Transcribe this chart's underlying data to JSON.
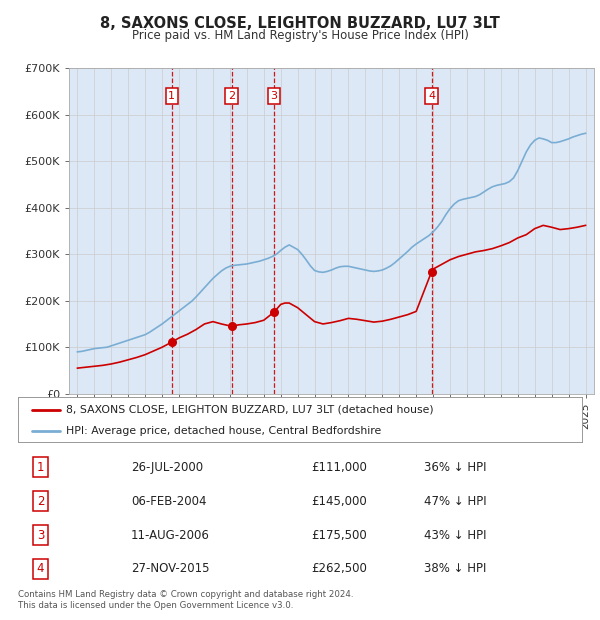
{
  "title": "8, SAXONS CLOSE, LEIGHTON BUZZARD, LU7 3LT",
  "subtitle": "Price paid vs. HM Land Registry's House Price Index (HPI)",
  "legend_property": "8, SAXONS CLOSE, LEIGHTON BUZZARD, LU7 3LT (detached house)",
  "legend_hpi": "HPI: Average price, detached house, Central Bedfordshire",
  "copyright": "Contains HM Land Registry data © Crown copyright and database right 2024.\nThis data is licensed under the Open Government Licence v3.0.",
  "transactions": [
    {
      "num": 1,
      "date": "26-JUL-2000",
      "date_x": 2000.57,
      "price": 111000,
      "label": "£111,000",
      "pct": "36% ↓ HPI"
    },
    {
      "num": 2,
      "date": "06-FEB-2004",
      "date_x": 2004.1,
      "price": 145000,
      "label": "£145,000",
      "pct": "47% ↓ HPI"
    },
    {
      "num": 3,
      "date": "11-AUG-2006",
      "date_x": 2006.61,
      "price": 175500,
      "label": "£175,500",
      "pct": "43% ↓ HPI"
    },
    {
      "num": 4,
      "date": "27-NOV-2015",
      "date_x": 2015.91,
      "price": 262500,
      "label": "£262,500",
      "pct": "38% ↓ HPI"
    }
  ],
  "hpi_color": "#7aadd4",
  "price_color": "#cc0000",
  "vline_color": "#cc0000",
  "background_color": "#dce8f5",
  "plot_background": "#ffffff",
  "ylim": [
    0,
    700000
  ],
  "xlim": [
    1994.5,
    2025.5
  ],
  "figsize": [
    6.0,
    6.2
  ],
  "dpi": 100,
  "years_hpi": [
    1995,
    1995.25,
    1995.5,
    1995.75,
    1996,
    1996.25,
    1996.5,
    1996.75,
    1997,
    1997.25,
    1997.5,
    1997.75,
    1998,
    1998.25,
    1998.5,
    1998.75,
    1999,
    1999.25,
    1999.5,
    1999.75,
    2000,
    2000.25,
    2000.5,
    2000.75,
    2001,
    2001.25,
    2001.5,
    2001.75,
    2002,
    2002.25,
    2002.5,
    2002.75,
    2003,
    2003.25,
    2003.5,
    2003.75,
    2004,
    2004.25,
    2004.5,
    2004.75,
    2005,
    2005.25,
    2005.5,
    2005.75,
    2006,
    2006.25,
    2006.5,
    2006.75,
    2007,
    2007.25,
    2007.5,
    2007.75,
    2008,
    2008.25,
    2008.5,
    2008.75,
    2009,
    2009.25,
    2009.5,
    2009.75,
    2010,
    2010.25,
    2010.5,
    2010.75,
    2011,
    2011.25,
    2011.5,
    2011.75,
    2012,
    2012.25,
    2012.5,
    2012.75,
    2013,
    2013.25,
    2013.5,
    2013.75,
    2014,
    2014.25,
    2014.5,
    2014.75,
    2015,
    2015.25,
    2015.5,
    2015.75,
    2016,
    2016.25,
    2016.5,
    2016.75,
    2017,
    2017.25,
    2017.5,
    2017.75,
    2018,
    2018.25,
    2018.5,
    2018.75,
    2019,
    2019.25,
    2019.5,
    2019.75,
    2020,
    2020.25,
    2020.5,
    2020.75,
    2021,
    2021.25,
    2021.5,
    2021.75,
    2022,
    2022.25,
    2022.5,
    2022.75,
    2023,
    2023.25,
    2023.5,
    2023.75,
    2024,
    2024.25,
    2024.5,
    2024.75,
    2025
  ],
  "hpi_values": [
    90000,
    91000,
    93000,
    95000,
    97000,
    98000,
    99000,
    100000,
    103000,
    106000,
    109000,
    112000,
    115000,
    118000,
    121000,
    124000,
    127000,
    132000,
    138000,
    144000,
    150000,
    157000,
    164000,
    171000,
    178000,
    185000,
    192000,
    199000,
    208000,
    218000,
    228000,
    238000,
    248000,
    256000,
    264000,
    270000,
    274000,
    276000,
    277000,
    278000,
    279000,
    281000,
    283000,
    285000,
    288000,
    291000,
    295000,
    300000,
    308000,
    315000,
    320000,
    315000,
    310000,
    300000,
    288000,
    275000,
    265000,
    262000,
    261000,
    263000,
    266000,
    270000,
    273000,
    274000,
    274000,
    272000,
    270000,
    268000,
    266000,
    264000,
    263000,
    264000,
    266000,
    270000,
    275000,
    282000,
    290000,
    298000,
    306000,
    315000,
    322000,
    328000,
    334000,
    340000,
    348000,
    358000,
    370000,
    385000,
    398000,
    408000,
    415000,
    418000,
    420000,
    422000,
    424000,
    428000,
    434000,
    440000,
    445000,
    448000,
    450000,
    452000,
    456000,
    464000,
    480000,
    500000,
    520000,
    535000,
    545000,
    550000,
    548000,
    545000,
    540000,
    540000,
    542000,
    545000,
    548000,
    552000,
    555000,
    558000,
    560000
  ],
  "years_price": [
    1995,
    1995.5,
    1996,
    1996.5,
    1997,
    1997.5,
    1998,
    1998.5,
    1999,
    1999.5,
    2000,
    2000.57,
    2001,
    2001.5,
    2002,
    2002.5,
    2003,
    2003.5,
    2004.1,
    2004.5,
    2005,
    2005.5,
    2006,
    2006.61,
    2007,
    2007.25,
    2007.5,
    2007.75,
    2008,
    2008.5,
    2009,
    2009.5,
    2010,
    2010.5,
    2011,
    2011.5,
    2012,
    2012.5,
    2013,
    2013.5,
    2014,
    2014.5,
    2015,
    2015.91,
    2016,
    2016.5,
    2017,
    2017.5,
    2018,
    2018.5,
    2019,
    2019.5,
    2020,
    2020.5,
    2021,
    2021.5,
    2022,
    2022.5,
    2023,
    2023.5,
    2024,
    2024.5,
    2025
  ],
  "price_values": [
    55000,
    57000,
    59000,
    61000,
    64000,
    68000,
    73000,
    78000,
    84000,
    92000,
    100000,
    111000,
    120000,
    128000,
    138000,
    150000,
    155000,
    150000,
    145000,
    148000,
    150000,
    153000,
    158000,
    175500,
    192000,
    195000,
    195000,
    190000,
    185000,
    170000,
    155000,
    150000,
    153000,
    157000,
    162000,
    160000,
    157000,
    154000,
    156000,
    160000,
    165000,
    170000,
    177000,
    262500,
    268000,
    278000,
    288000,
    295000,
    300000,
    305000,
    308000,
    312000,
    318000,
    325000,
    335000,
    342000,
    355000,
    362000,
    358000,
    353000,
    355000,
    358000,
    362000
  ]
}
